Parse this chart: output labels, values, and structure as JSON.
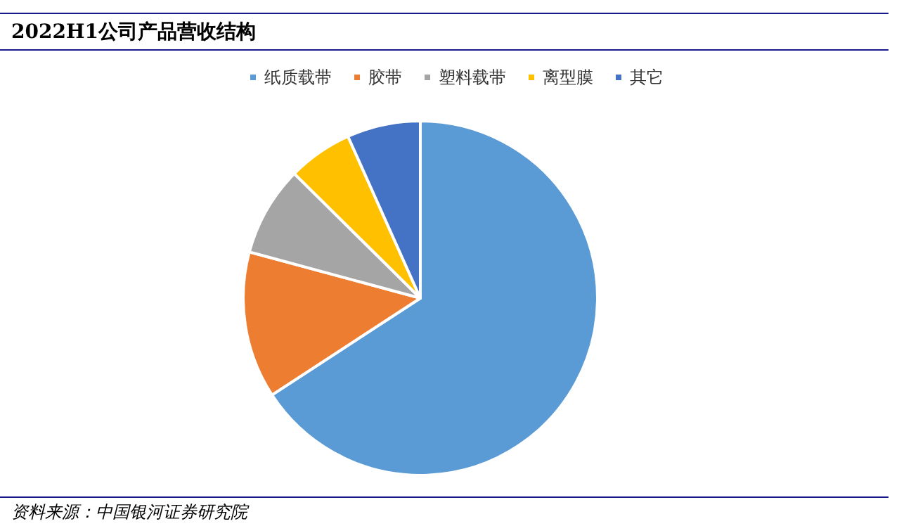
{
  "chart_data": {
    "type": "pie",
    "title": "2022H1公司产品营收结构",
    "categories": [
      "纸质载带",
      "胶带",
      "塑料载带",
      "离型膜",
      "其它"
    ],
    "values": [
      65.8,
      13.4,
      8.2,
      5.9,
      6.7
    ],
    "colors": [
      "#5b9bd5",
      "#ed7d31",
      "#a5a5a5",
      "#ffc000",
      "#4472c4"
    ],
    "legend": "top",
    "annotations": [
      "资料来源：中国银河证券研究院"
    ]
  }
}
